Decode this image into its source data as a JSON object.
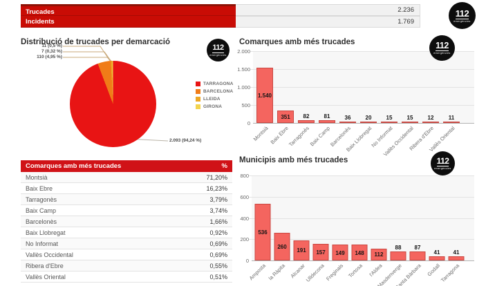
{
  "logo": {
    "number": "112",
    "subtext": "emergències"
  },
  "summary": {
    "rows": [
      {
        "label": "Trucades",
        "value": "2.236"
      },
      {
        "label": "Incidents",
        "value": "1.769"
      }
    ]
  },
  "table": {
    "header": {
      "title": "Comarques amb més trucades",
      "pct": "%"
    },
    "rows": [
      {
        "name": "Montsià",
        "pct": "71,20%"
      },
      {
        "name": "Baix Ebre",
        "pct": "16,23%"
      },
      {
        "name": "Tarragonès",
        "pct": "3,79%"
      },
      {
        "name": "Baix Camp",
        "pct": "3,74%"
      },
      {
        "name": "Barcelonès",
        "pct": "1,66%"
      },
      {
        "name": "Baix Llobregat",
        "pct": "0,92%"
      },
      {
        "name": "No Informat",
        "pct": "0,69%"
      },
      {
        "name": "Vallès Occidental",
        "pct": "0,69%"
      },
      {
        "name": "Ribera d'Ebre",
        "pct": "0,55%"
      },
      {
        "name": "Vallès Oriental",
        "pct": "0,51%"
      }
    ]
  },
  "chart_data": [
    {
      "type": "pie",
      "title": "Distribució de trucades per demarcació",
      "slices": [
        {
          "label": "TARRAGONA",
          "value": 2093,
          "percent": 94.24,
          "display": "2.093 (94,24 %)",
          "color": "#e81414"
        },
        {
          "label": "BARCELONA",
          "value": 110,
          "percent": 4.95,
          "display": "110 (4,95 %)",
          "color": "#f07c18"
        },
        {
          "label": "LLEIDA",
          "value": 11,
          "percent": 0.5,
          "display": "11 (0,5 %)",
          "color": "#eda724"
        },
        {
          "label": "GIRONA",
          "value": 7,
          "percent": 0.32,
          "display": "7 (0,32 %)",
          "color": "#f3d44e"
        }
      ],
      "callouts_top": [
        "11 (0,5 %)",
        "7 (0,32 %)",
        "110 (4,95 %)"
      ],
      "callout_main": "2.093 (94,24 %)",
      "legend_position": "right"
    },
    {
      "type": "bar",
      "title": "Comarques amb més trucades",
      "categories": [
        "Montsià",
        "Baix Ebre",
        "Tarragonès",
        "Baix Camp",
        "Barcelonès",
        "Baix Llobregat",
        "No Informat",
        "Vallès Occidental",
        "Ribera d'Ebre",
        "Vallès Oriental"
      ],
      "values": [
        1540,
        351,
        82,
        81,
        36,
        20,
        15,
        15,
        12,
        11
      ],
      "value_labels": [
        "1.540",
        "351",
        "82",
        "81",
        "36",
        "20",
        "15",
        "15",
        "12",
        "11"
      ],
      "ylim": [
        0,
        2000
      ],
      "yticks": [
        "2.000",
        "1.500",
        "1.000",
        "500",
        "0"
      ],
      "bar_color": "#f4655f",
      "bar_border": "#c94741",
      "grid": true
    },
    {
      "type": "bar",
      "title": "Municipis amb més trucades",
      "categories": [
        "Amposta",
        "la Ràpita",
        "Alcanar",
        "Ulldecona",
        "Freginals",
        "Tortosa",
        "l'Aldea",
        "Masdenverge",
        "Santa Bàrbara",
        "Godall",
        "Tarragona"
      ],
      "values": [
        536,
        260,
        191,
        157,
        149,
        148,
        112,
        88,
        87,
        41,
        41
      ],
      "value_labels": [
        "536",
        "260",
        "191",
        "157",
        "149",
        "148",
        "112",
        "88",
        "87",
        "41",
        "41"
      ],
      "ylim": [
        0,
        800
      ],
      "yticks": [
        "800",
        "600",
        "400",
        "200",
        "0"
      ],
      "bar_color": "#f4655f",
      "bar_border": "#c94741",
      "grid": true
    }
  ]
}
